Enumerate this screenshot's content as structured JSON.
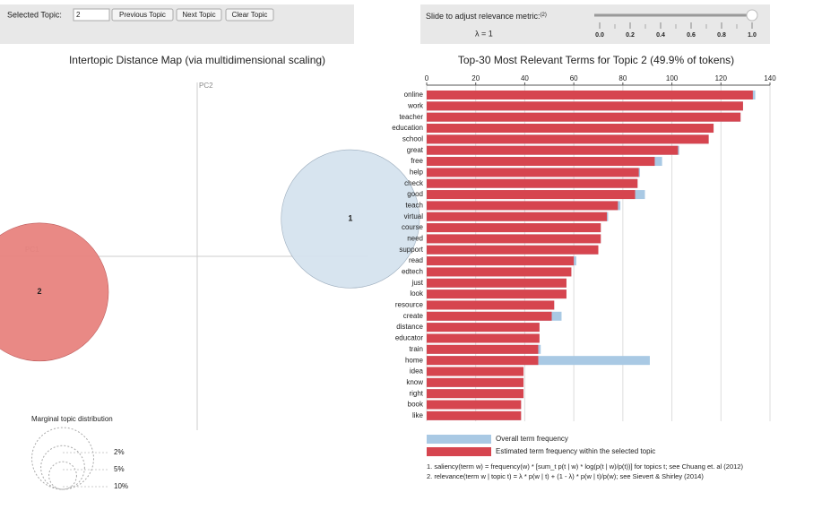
{
  "controls": {
    "selected_topic_label": "Selected Topic:",
    "selected_topic": 2,
    "buttons": [
      "Previous Topic",
      "Next Topic",
      "Clear Topic"
    ]
  },
  "slider": {
    "label": "Slide to adjust relevance metric:",
    "footnote_mark": "(2)",
    "lambda_label": "λ = 1",
    "value": 1,
    "lim": [
      0,
      1
    ],
    "ticks": [
      {
        "value": 0,
        "label": "0.0"
      },
      0.2,
      0.4,
      0.6,
      0.8,
      {
        "value": 1,
        "label": "1.0"
      }
    ],
    "minor_ticks": [
      0.1,
      0.3,
      0.5,
      0.7,
      0.9
    ]
  },
  "chart_data": [
    {
      "type": "bubble",
      "title": "Intertopic Distance Map (via multidimensional scaling)",
      "xlabel": "PC1",
      "ylabel": "PC2",
      "labels": [
        "1",
        "2"
      ],
      "x": [
        0.233,
        -0.24
      ],
      "y": [
        0.064,
        -0.061
      ],
      "sizes": [
        50.1,
        49.9
      ],
      "xlim": [
        -0.3,
        0.3
      ],
      "ylim": [
        -0.3,
        0.3
      ],
      "color": "#d5e3ef",
      "selected_color": "#e8837f",
      "size_legend_title": "Marginal topic distribution",
      "size_legend": [
        {
          "value": 2,
          "label": "2%"
        },
        {
          "value": 5,
          "label": "5%"
        },
        {
          "value": 10,
          "label": "10%"
        }
      ]
    },
    {
      "type": "barh",
      "title": "Top-30 Most Relevant Terms for Topic 2 (49.9% of tokens)",
      "categories": [
        "online",
        "work",
        "teacher",
        "education",
        "school",
        "great",
        "free",
        "help",
        "check",
        "good",
        "teach",
        "virtual",
        "course",
        "need",
        "support",
        "read",
        "edtech",
        "just",
        "look",
        "resource",
        "create",
        "distance",
        "educator",
        "train",
        "home",
        "idea",
        "know",
        "right",
        "book",
        "like"
      ],
      "series": [
        {
          "name": "Overall term frequency",
          "color": "#a9c9e4",
          "values": [
            134,
            129,
            128,
            117,
            115,
            103,
            96,
            87,
            86,
            89,
            79,
            74,
            71,
            71,
            70,
            61,
            59,
            57,
            57,
            52,
            55,
            46,
            46,
            46.5,
            91,
            39.5,
            39.5,
            39.5,
            38.5,
            38.5
          ]
        },
        {
          "name": "Estimated term frequency within the selected topic",
          "color": "#d6454f",
          "values": [
            133,
            129,
            128,
            117,
            115,
            102.5,
            93,
            86.5,
            86,
            85,
            78,
            73.5,
            71,
            71,
            70,
            60,
            59,
            57,
            57,
            52,
            51,
            46,
            46,
            45.5,
            45.5,
            39.5,
            39.5,
            39.5,
            38.5,
            38.5
          ]
        }
      ],
      "xlim": [
        0,
        140
      ],
      "xticks": [
        0,
        20,
        40,
        60,
        80,
        100,
        120,
        140
      ],
      "grid": true,
      "footnotes": [
        "1. saliency(term w) = frequency(w) * [sum_t p(t | w) * log(p(t | w)/p(t))] for topics t; see Chuang et. al (2012)",
        "2. relevance(term w | topic t) = λ * p(w | t) + (1 - λ) * p(w | t)/p(w); see Sievert & Shirley (2014)"
      ]
    }
  ]
}
